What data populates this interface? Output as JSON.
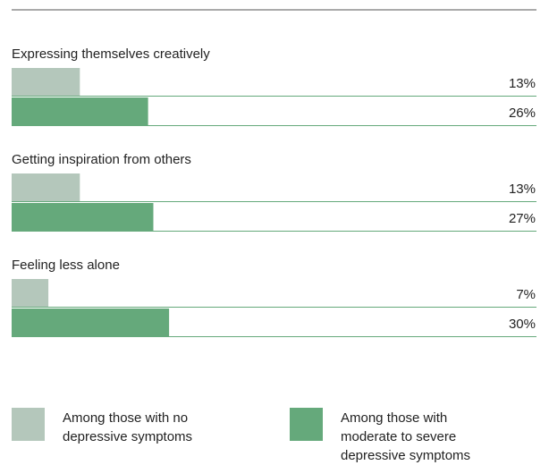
{
  "colors": {
    "no_symptoms": "#b4c7bb",
    "moderate_severe": "#65a97b",
    "rule": "#555555",
    "track": "#65a97b"
  },
  "chart_data": {
    "type": "bar",
    "orientation": "horizontal",
    "xlim": [
      0,
      100
    ],
    "categories": [
      "Expressing themselves creatively",
      "Getting inspiration from others",
      "Feeling less alone"
    ],
    "series": [
      {
        "name": "Among those with no depressive symptoms",
        "color": "#b4c7bb",
        "values": [
          13,
          13,
          7
        ],
        "labels": [
          "13%",
          "13%",
          "7%"
        ]
      },
      {
        "name": "Among those with moderate to severe depressive symptoms",
        "color": "#65a97b",
        "values": [
          26,
          27,
          30
        ],
        "labels": [
          "26%",
          "27%",
          "30%"
        ]
      }
    ],
    "legend": "bottom",
    "grid": false
  },
  "legend": [
    {
      "line1": "Among those with no",
      "line2": "depressive symptoms",
      "line3": ""
    },
    {
      "line1": "Among those with",
      "line2": "moderate to severe",
      "line3": "depressive symptoms"
    }
  ]
}
